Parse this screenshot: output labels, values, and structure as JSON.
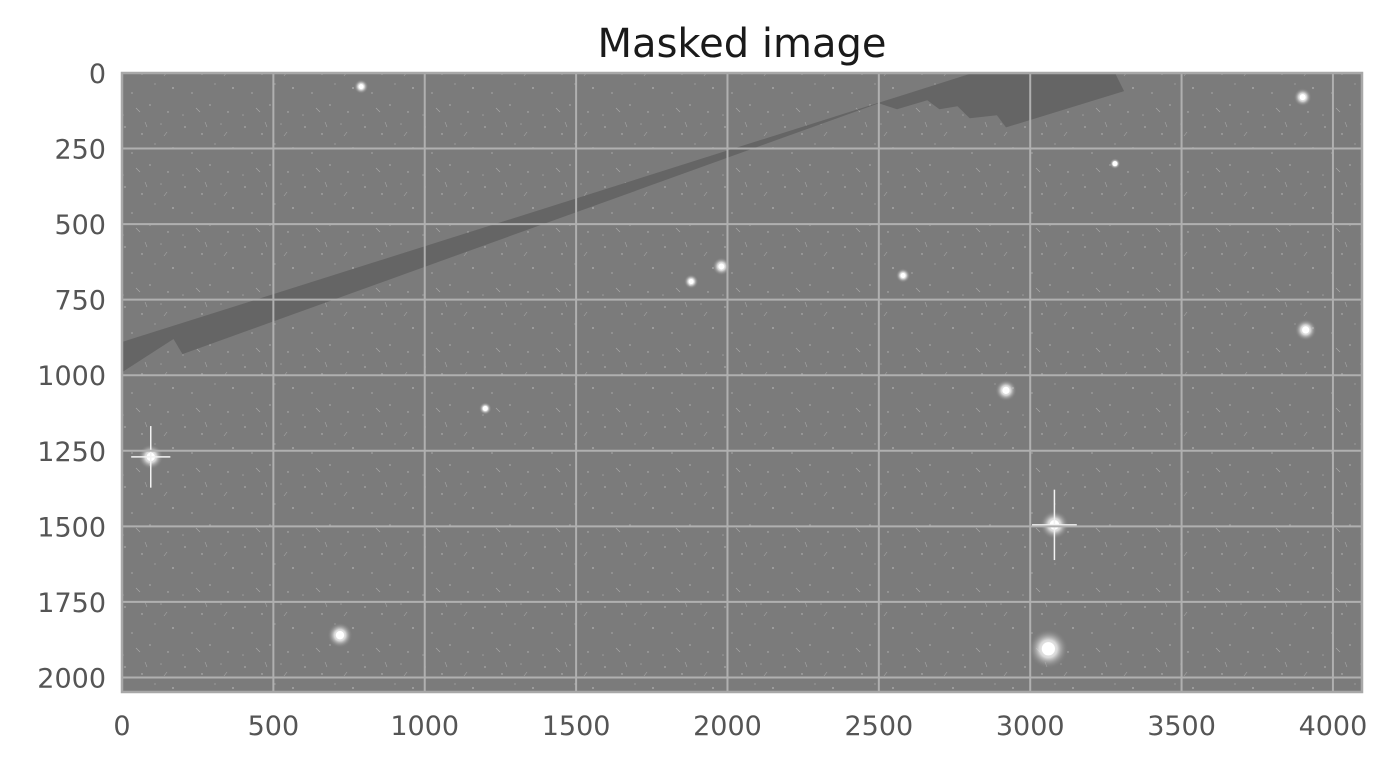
{
  "chart_data": {
    "type": "heatmap",
    "title": "Masked image",
    "xlabel": "",
    "ylabel": "",
    "xlim": [
      0,
      4096
    ],
    "ylim": [
      2048,
      0
    ],
    "x_ticks": [
      0,
      500,
      1000,
      1500,
      2000,
      2500,
      3000,
      3500,
      4000
    ],
    "y_ticks": [
      0,
      250,
      500,
      750,
      1000,
      1250,
      1500,
      1750,
      2000
    ],
    "grid": true,
    "colormap": "gray",
    "colors": {
      "background": "#7b7b7b",
      "mask": "#656565",
      "grid": "#b0b0b0",
      "spine": "#a8a8a8",
      "text": "#555555"
    },
    "masked_region": {
      "description_polygon_pixels": [
        [
          0,
          890
        ],
        [
          2810,
          0
        ],
        [
          3280,
          0
        ],
        [
          3310,
          60
        ],
        [
          2920,
          180
        ],
        [
          2890,
          140
        ],
        [
          2800,
          150
        ],
        [
          2760,
          110
        ],
        [
          2700,
          120
        ],
        [
          2660,
          90
        ],
        [
          2560,
          120
        ],
        [
          2500,
          100
        ],
        [
          200,
          930
        ],
        [
          170,
          880
        ],
        [
          0,
          990
        ]
      ]
    },
    "bright_sources": [
      {
        "x": 95,
        "y": 1270,
        "r": 14,
        "spikes": true
      },
      {
        "x": 3080,
        "y": 1495,
        "r": 16,
        "spikes": true
      },
      {
        "x": 2920,
        "y": 1050,
        "r": 12,
        "spikes": false
      },
      {
        "x": 3910,
        "y": 850,
        "r": 12,
        "spikes": false
      },
      {
        "x": 3900,
        "y": 80,
        "r": 10,
        "spikes": false
      },
      {
        "x": 3060,
        "y": 1905,
        "r": 22,
        "spikes": false
      },
      {
        "x": 720,
        "y": 1860,
        "r": 14,
        "spikes": false
      },
      {
        "x": 1880,
        "y": 690,
        "r": 8,
        "spikes": false
      },
      {
        "x": 1200,
        "y": 1110,
        "r": 7,
        "spikes": false
      },
      {
        "x": 2580,
        "y": 670,
        "r": 8,
        "spikes": false
      },
      {
        "x": 1980,
        "y": 640,
        "r": 10,
        "spikes": false
      },
      {
        "x": 3280,
        "y": 300,
        "r": 6,
        "spikes": false
      },
      {
        "x": 790,
        "y": 45,
        "r": 8,
        "spikes": false
      }
    ]
  }
}
